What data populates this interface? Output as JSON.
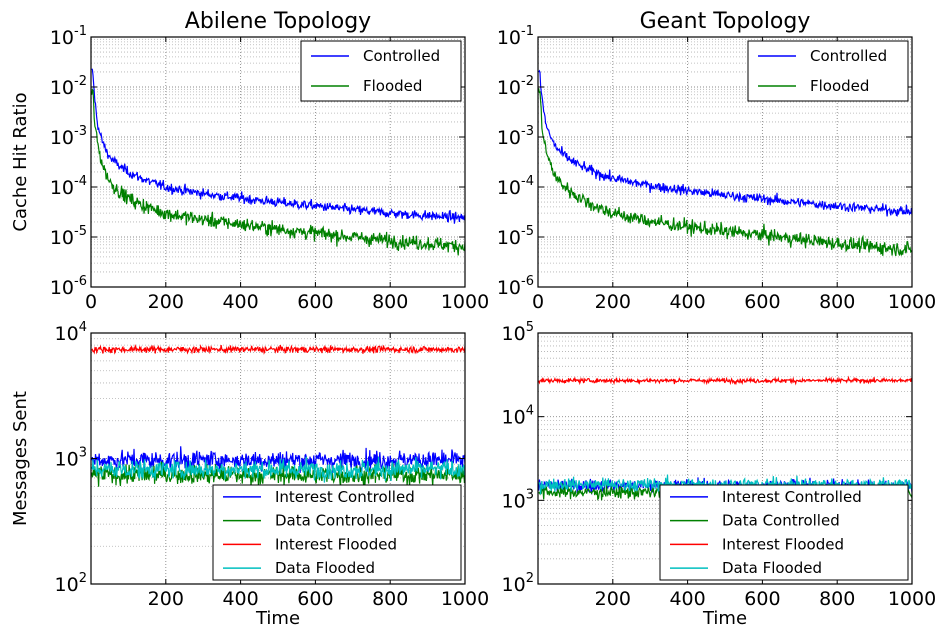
{
  "chart_data": [
    {
      "type": "line",
      "title": "Abilene Topology",
      "xlabel": "",
      "ylabel": "Cache Hit Ratio",
      "xlim": [
        0,
        1000
      ],
      "ylim": [
        1e-06,
        0.1
      ],
      "yscale": "log",
      "xticks": [
        "0",
        "200",
        "400",
        "600",
        "800",
        "1000"
      ],
      "yticks": [
        {
          "base": "10",
          "exp": "-6"
        },
        {
          "base": "10",
          "exp": "-5"
        },
        {
          "base": "10",
          "exp": "-4"
        },
        {
          "base": "10",
          "exp": "-3"
        },
        {
          "base": "10",
          "exp": "-2"
        },
        {
          "base": "10",
          "exp": "-1"
        }
      ],
      "grid": true,
      "legend": "top-right",
      "x": [
        5,
        10,
        20,
        50,
        100,
        200,
        400,
        600,
        800,
        1000
      ],
      "series": [
        {
          "name": "Controlled",
          "color": "#0000ff",
          "values": [
            0.02,
            0.006,
            0.0015,
            0.0004,
            0.0002,
            0.0001,
            6e-05,
            4.2e-05,
            3e-05,
            2.4e-05
          ]
        },
        {
          "name": "Flooded",
          "color": "#008000",
          "values": [
            0.008,
            0.002,
            0.0006,
            0.00013,
            6e-05,
            3e-05,
            1.8e-05,
            1.2e-05,
            8.5e-06,
            6.5e-06
          ]
        }
      ]
    },
    {
      "type": "line",
      "title": "Geant Topology",
      "xlabel": "",
      "ylabel": "",
      "xlim": [
        0,
        1000
      ],
      "ylim": [
        1e-06,
        0.1
      ],
      "yscale": "log",
      "xticks": [
        "0",
        "200",
        "400",
        "600",
        "800",
        "1000"
      ],
      "yticks": [
        {
          "base": "10",
          "exp": "-6"
        },
        {
          "base": "10",
          "exp": "-5"
        },
        {
          "base": "10",
          "exp": "-4"
        },
        {
          "base": "10",
          "exp": "-3"
        },
        {
          "base": "10",
          "exp": "-2"
        },
        {
          "base": "10",
          "exp": "-1"
        }
      ],
      "grid": true,
      "legend": "top-right",
      "x": [
        5,
        10,
        20,
        50,
        100,
        200,
        400,
        600,
        800,
        1000
      ],
      "series": [
        {
          "name": "Controlled",
          "color": "#0000ff",
          "values": [
            0.02,
            0.007,
            0.002,
            0.0006,
            0.0003,
            0.00015,
            8.5e-05,
            5.8e-05,
            4.2e-05,
            3.2e-05
          ]
        },
        {
          "name": "Flooded",
          "color": "#008000",
          "values": [
            0.009,
            0.002,
            0.0006,
            0.00015,
            7e-05,
            3e-05,
            1.6e-05,
            1.1e-05,
            7.5e-06,
            5.5e-06
          ]
        }
      ]
    },
    {
      "type": "line",
      "title": "",
      "xlabel": "Time",
      "ylabel": "Messages Sent",
      "xlim": [
        0,
        1000
      ],
      "ylim": [
        100,
        10000
      ],
      "yscale": "log",
      "xticks": [
        "200",
        "400",
        "600",
        "800",
        "1000"
      ],
      "yticks": [
        {
          "base": "10",
          "exp": "2"
        },
        {
          "base": "10",
          "exp": "3"
        },
        {
          "base": "10",
          "exp": "4"
        }
      ],
      "grid": true,
      "legend": "bottom-right",
      "x": [
        0,
        1000
      ],
      "series": [
        {
          "name": "Interest Controlled",
          "color": "#0000ff",
          "values": [
            970,
            970
          ]
        },
        {
          "name": "Data Controlled",
          "color": "#008000",
          "values": [
            740,
            740
          ]
        },
        {
          "name": "Interest Flooded",
          "color": "#ff0000",
          "values": [
            7400,
            7400
          ]
        },
        {
          "name": "Data Flooded",
          "color": "#00bfbf",
          "values": [
            820,
            820
          ]
        }
      ]
    },
    {
      "type": "line",
      "title": "",
      "xlabel": "Time",
      "ylabel": "",
      "xlim": [
        0,
        1000
      ],
      "ylim": [
        100,
        100000
      ],
      "yscale": "log",
      "xticks": [
        "200",
        "400",
        "600",
        "800",
        "1000"
      ],
      "yticks": [
        {
          "base": "10",
          "exp": "2"
        },
        {
          "base": "10",
          "exp": "3"
        },
        {
          "base": "10",
          "exp": "4"
        },
        {
          "base": "10",
          "exp": "5"
        }
      ],
      "grid": true,
      "legend": "bottom-right",
      "x": [
        0,
        1000
      ],
      "series": [
        {
          "name": "Interest Controlled",
          "color": "#0000ff",
          "values": [
            1500,
            1500
          ]
        },
        {
          "name": "Data Controlled",
          "color": "#008000",
          "values": [
            1250,
            1250
          ]
        },
        {
          "name": "Interest Flooded",
          "color": "#ff0000",
          "values": [
            27000,
            27000
          ]
        },
        {
          "name": "Data Flooded",
          "color": "#00bfbf",
          "values": [
            1550,
            1550
          ]
        }
      ]
    }
  ]
}
